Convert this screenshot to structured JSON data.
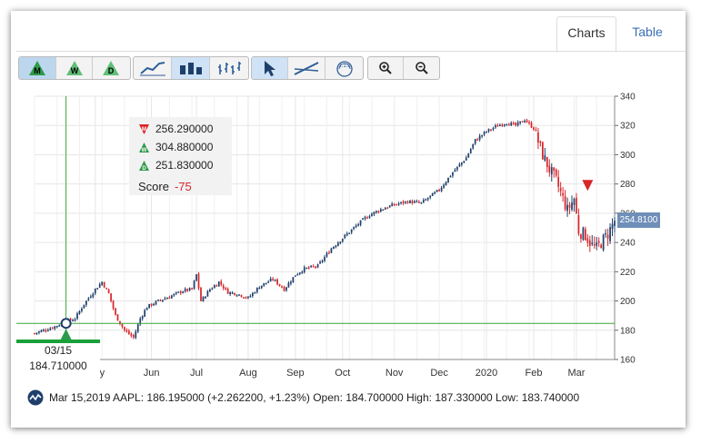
{
  "tabs": [
    {
      "label": "Charts",
      "active": true
    },
    {
      "label": "Table",
      "active": false
    }
  ],
  "toolbar": {
    "period_buttons": [
      {
        "label": "M",
        "icon": "monthly-signal-icon",
        "active": true
      },
      {
        "label": "W",
        "icon": "weekly-signal-icon",
        "active": false
      },
      {
        "label": "D",
        "icon": "daily-signal-icon",
        "active": false
      }
    ],
    "chart_types": [
      "line-chart-icon",
      "bar-chart-icon",
      "ohlc-chart-icon"
    ],
    "tools": [
      "pointer-icon",
      "trendline-icon",
      "fibonacci-icon"
    ],
    "zoom": [
      "zoom-in-icon",
      "zoom-out-icon"
    ]
  },
  "signals": {
    "monthly": "256.290000",
    "weekly": "304.880000",
    "daily": "251.830000",
    "score_label": "Score",
    "score_value": "-75"
  },
  "crosshair": {
    "date": "03/15",
    "value": "184.710000"
  },
  "current_price": "254.8100",
  "footer": {
    "text": "Mar 15,2019 AAPL: 186.195000 (+2.262200, +1.23%) Open: 184.700000 High: 187.330000 Low: 183.740000"
  },
  "colors": {
    "up": "#1f3f6b",
    "down": "#d8262a",
    "grid": "#e6e6e6",
    "crosshair": "#3aa63a",
    "signal_green": "#2e9a4b",
    "signal_red": "#d8262a"
  },
  "chart_data": {
    "type": "candlestick",
    "ticker": "AAPL",
    "y_ticks": [
      160,
      180,
      200,
      220,
      240,
      260,
      280,
      300,
      320,
      340
    ],
    "ylim": [
      160,
      340
    ],
    "x_ticks": [
      {
        "label": "May",
        "index": 27
      },
      {
        "label": "Jun",
        "index": 52
      },
      {
        "label": "Jul",
        "index": 72
      },
      {
        "label": "Aug",
        "index": 95
      },
      {
        "label": "Sep",
        "index": 116
      },
      {
        "label": "Oct",
        "index": 137
      },
      {
        "label": "Nov",
        "index": 160
      },
      {
        "label": "Dec",
        "index": 180
      },
      {
        "label": "2020",
        "index": 201
      },
      {
        "label": "Feb",
        "index": 222
      },
      {
        "label": "Mar",
        "index": 241
      }
    ],
    "x_range": [
      0,
      258
    ],
    "crosshair_index": 14,
    "series_anchor_closes": [
      [
        0,
        178
      ],
      [
        8,
        182
      ],
      [
        14,
        186
      ],
      [
        18,
        188
      ],
      [
        22,
        198
      ],
      [
        27,
        208
      ],
      [
        30,
        213
      ],
      [
        33,
        205
      ],
      [
        36,
        190
      ],
      [
        40,
        180
      ],
      [
        44,
        175
      ],
      [
        47,
        188
      ],
      [
        50,
        196
      ],
      [
        55,
        200
      ],
      [
        60,
        203
      ],
      [
        66,
        207
      ],
      [
        70,
        208
      ],
      [
        72,
        218
      ],
      [
        74,
        200
      ],
      [
        78,
        208
      ],
      [
        82,
        213
      ],
      [
        86,
        206
      ],
      [
        90,
        205
      ],
      [
        95,
        202
      ],
      [
        100,
        210
      ],
      [
        106,
        215
      ],
      [
        111,
        208
      ],
      [
        116,
        218
      ],
      [
        120,
        222
      ],
      [
        126,
        224
      ],
      [
        132,
        236
      ],
      [
        137,
        243
      ],
      [
        142,
        250
      ],
      [
        148,
        258
      ],
      [
        153,
        262
      ],
      [
        160,
        266
      ],
      [
        166,
        268
      ],
      [
        172,
        267
      ],
      [
        180,
        276
      ],
      [
        186,
        288
      ],
      [
        192,
        298
      ],
      [
        196,
        310
      ],
      [
        201,
        316
      ],
      [
        206,
        320
      ],
      [
        210,
        322
      ],
      [
        214,
        320
      ],
      [
        218,
        324
      ],
      [
        222,
        318
      ],
      [
        226,
        300
      ],
      [
        229,
        290
      ],
      [
        232,
        282
      ],
      [
        235,
        270
      ],
      [
        237,
        262
      ],
      [
        240,
        270
      ],
      [
        242,
        248
      ],
      [
        245,
        245
      ],
      [
        248,
        238
      ],
      [
        250,
        236
      ],
      [
        252,
        240
      ],
      [
        255,
        246
      ],
      [
        258,
        255
      ]
    ]
  }
}
